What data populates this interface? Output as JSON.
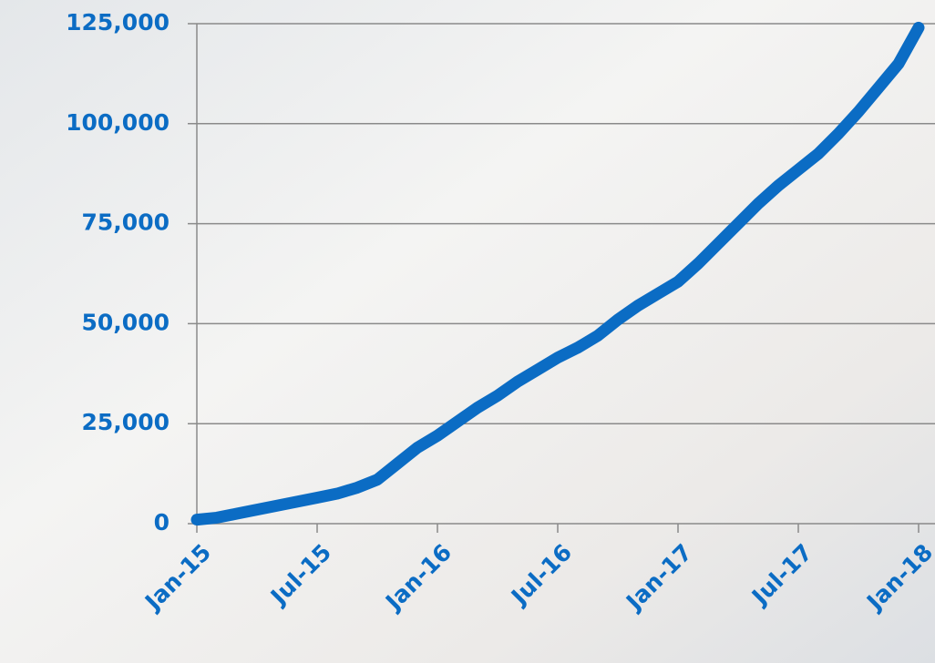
{
  "chart_data": {
    "type": "line",
    "color": "#0b6cc4",
    "grid": true,
    "categories": [
      "Jan-15",
      null,
      null,
      null,
      null,
      null,
      "Jul-15",
      null,
      null,
      null,
      null,
      null,
      "Jan-16",
      null,
      null,
      null,
      null,
      null,
      "Jul-16",
      null,
      null,
      null,
      null,
      null,
      "Jan-17",
      null,
      null,
      null,
      null,
      null,
      "Jul-17",
      null,
      null,
      null,
      null,
      null,
      "Jan-18"
    ],
    "values": [
      1000,
      1500,
      2500,
      3500,
      4500,
      5500,
      6500,
      7500,
      9000,
      11000,
      15000,
      19000,
      22000,
      25500,
      29000,
      32000,
      35500,
      38500,
      41500,
      44000,
      47000,
      51000,
      54500,
      57500,
      60500,
      65000,
      70000,
      75000,
      80000,
      84500,
      88500,
      92500,
      97500,
      103000,
      109000,
      115000,
      124000
    ],
    "ylim": [
      0,
      125000
    ],
    "yticks": [
      0,
      {
        "value": 25000,
        "label": "25,000"
      },
      {
        "value": 50000,
        "label": "50,000"
      },
      {
        "value": 75000,
        "label": "75,000"
      },
      {
        "value": 100000,
        "label": "100,000"
      },
      {
        "value": 125000,
        "label": "125,000"
      }
    ]
  }
}
